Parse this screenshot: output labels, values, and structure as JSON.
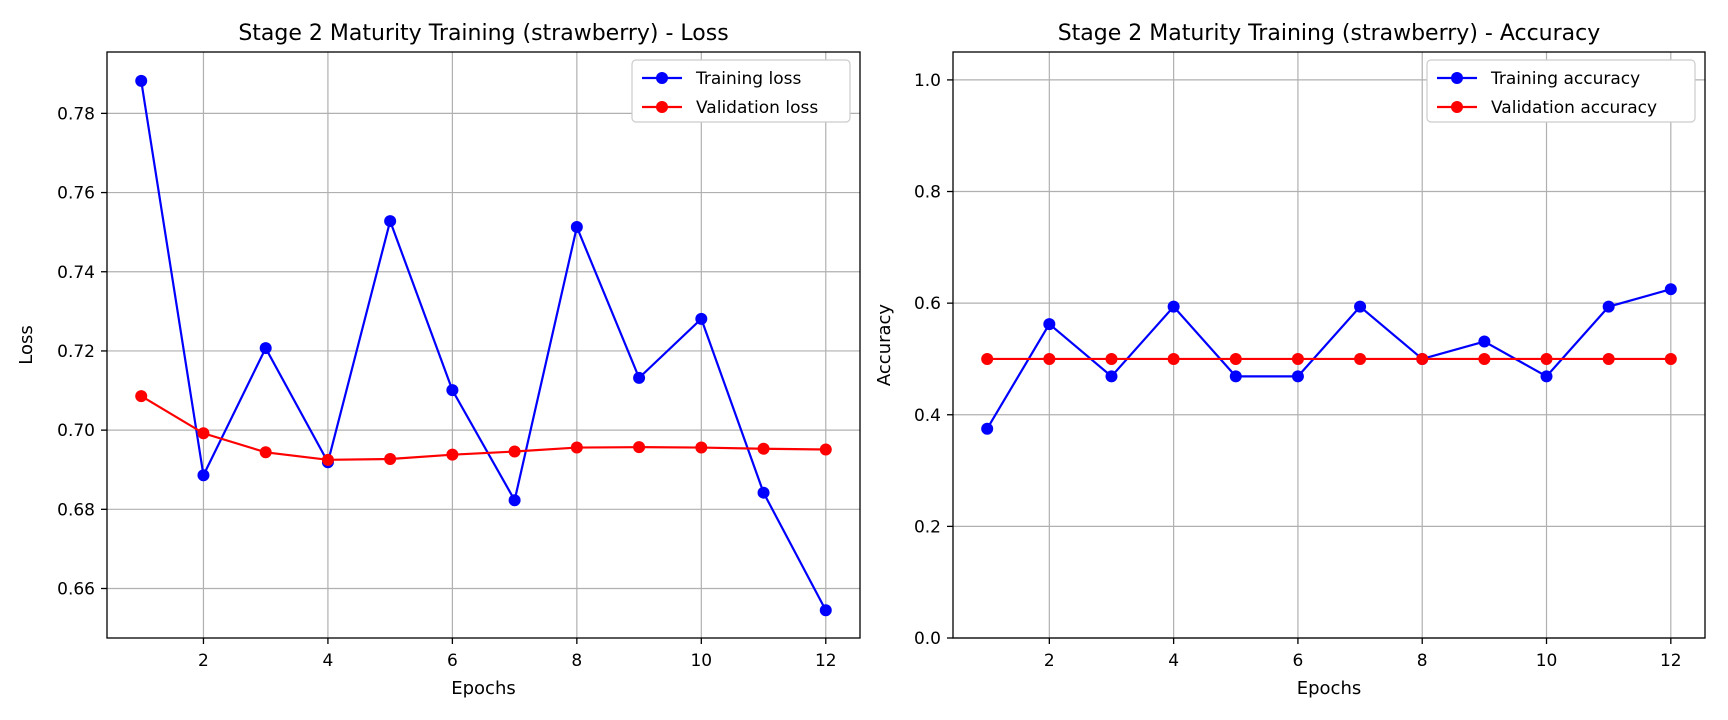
{
  "chart_data": [
    {
      "type": "line",
      "title": "Stage 2 Maturity Training (strawberry) - Loss",
      "xlabel": "Epochs",
      "ylabel": "Loss",
      "xlim": [
        0.45,
        12.55
      ],
      "ylim": [
        0.6475,
        0.7955
      ],
      "xticks": [
        2,
        4,
        6,
        8,
        10,
        12
      ],
      "xtick_labels": [
        "2",
        "4",
        "6",
        "8",
        "10",
        "12"
      ],
      "yticks": [
        0.66,
        0.68,
        0.7,
        0.72,
        0.74,
        0.76,
        0.78
      ],
      "ytick_labels": [
        "0.66",
        "0.68",
        "0.70",
        "0.72",
        "0.74",
        "0.76",
        "0.78"
      ],
      "grid": true,
      "legend": "upper-right",
      "x": [
        1,
        2,
        3,
        4,
        5,
        6,
        7,
        8,
        9,
        10,
        11,
        12
      ],
      "series": [
        {
          "name": "Training loss",
          "color": "#0000ff",
          "values": [
            0.7882,
            0.6886,
            0.7207,
            0.6919,
            0.7528,
            0.7101,
            0.6823,
            0.7513,
            0.7132,
            0.7281,
            0.6842,
            0.6545
          ]
        },
        {
          "name": "Validation loss",
          "color": "#ff0000",
          "values": [
            0.7086,
            0.6992,
            0.6944,
            0.6925,
            0.6927,
            0.6938,
            0.6946,
            0.6956,
            0.6957,
            0.6956,
            0.6953,
            0.6951
          ]
        }
      ]
    },
    {
      "type": "line",
      "title": "Stage 2 Maturity Training (strawberry) - Accuracy",
      "xlabel": "Epochs",
      "ylabel": "Accuracy",
      "xlim": [
        0.45,
        12.55
      ],
      "ylim": [
        0.0,
        1.05
      ],
      "xticks": [
        2,
        4,
        6,
        8,
        10,
        12
      ],
      "xtick_labels": [
        "2",
        "4",
        "6",
        "8",
        "10",
        "12"
      ],
      "yticks": [
        0.0,
        0.2,
        0.4,
        0.6,
        0.8,
        1.0
      ],
      "ytick_labels": [
        "0.0",
        "0.2",
        "0.4",
        "0.6",
        "0.8",
        "1.0"
      ],
      "grid": true,
      "legend": "upper-right",
      "x": [
        1,
        2,
        3,
        4,
        5,
        6,
        7,
        8,
        9,
        10,
        11,
        12
      ],
      "series": [
        {
          "name": "Training accuracy",
          "color": "#0000ff",
          "values": [
            0.375,
            0.5625,
            0.46875,
            0.59375,
            0.46875,
            0.46875,
            0.59375,
            0.5,
            0.53125,
            0.46875,
            0.59375,
            0.625
          ]
        },
        {
          "name": "Validation accuracy",
          "color": "#ff0000",
          "values": [
            0.5,
            0.5,
            0.5,
            0.5,
            0.5,
            0.5,
            0.5,
            0.5,
            0.5,
            0.5,
            0.5,
            0.5
          ]
        }
      ]
    }
  ]
}
